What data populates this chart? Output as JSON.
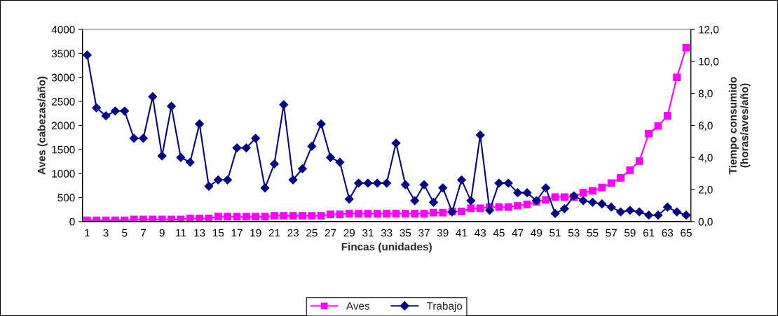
{
  "chart_data": {
    "type": "line",
    "xlabel": "Fincas (unidades)",
    "ylabel": "Aves (cabezas/año)",
    "y2label": "Tiempo consumido\n(horas/aves/año)",
    "categories": [
      "1",
      null,
      "3",
      null,
      "5",
      null,
      "7",
      null,
      "9",
      null,
      "11",
      null,
      "13",
      null,
      "15",
      null,
      "17",
      null,
      "19",
      null,
      "21",
      null,
      "23",
      null,
      "25",
      null,
      "27",
      null,
      "29",
      null,
      "31",
      null,
      "33",
      null,
      "35",
      null,
      "37",
      null,
      "39",
      null,
      "41",
      null,
      "43",
      null,
      "45",
      null,
      "47",
      null,
      "49",
      null,
      "51",
      null,
      "53",
      null,
      "55",
      null,
      "57",
      null,
      "59",
      null,
      "61",
      null,
      "63",
      null,
      "65"
    ],
    "series": [
      {
        "name": "Aves",
        "color": "#ff00ff",
        "marker": "square",
        "values": [
          25,
          25,
          25,
          25,
          25,
          45,
          45,
          45,
          45,
          45,
          45,
          65,
          65,
          65,
          100,
          100,
          100,
          100,
          100,
          100,
          120,
          120,
          120,
          120,
          120,
          120,
          150,
          150,
          165,
          165,
          165,
          165,
          165,
          165,
          165,
          165,
          165,
          185,
          185,
          210,
          210,
          275,
          275,
          300,
          300,
          300,
          330,
          355,
          410,
          450,
          510,
          510,
          510,
          600,
          640,
          710,
          800,
          910,
          1070,
          1260,
          1830,
          1990,
          2200,
          3000,
          3620
        ]
      },
      {
        "name": "Trabajo",
        "color": "#000080",
        "marker": "diamond",
        "axis": "y2",
        "values": [
          10.4,
          7.1,
          6.6,
          6.9,
          6.9,
          5.2,
          5.2,
          7.8,
          4.1,
          7.2,
          4.0,
          3.7,
          6.1,
          2.2,
          2.6,
          2.6,
          4.6,
          4.6,
          5.2,
          2.1,
          3.6,
          7.3,
          2.6,
          3.3,
          4.7,
          6.1,
          4.0,
          3.7,
          1.4,
          2.4,
          2.4,
          2.4,
          2.4,
          4.9,
          2.3,
          1.3,
          2.3,
          1.2,
          2.1,
          0.6,
          2.6,
          1.3,
          5.4,
          0.7,
          2.4,
          2.4,
          1.8,
          1.8,
          1.3,
          2.1,
          0.5,
          0.8,
          1.6,
          1.3,
          1.2,
          1.1,
          0.9,
          0.6,
          0.7,
          0.6,
          0.4,
          0.4,
          0.9,
          0.6,
          0.4
        ]
      }
    ],
    "ylim": [
      0,
      4000
    ],
    "yticks": [
      0,
      500,
      1000,
      1500,
      2000,
      2500,
      3000,
      3500,
      4000
    ],
    "y2lim": [
      0,
      12
    ],
    "y2ticks": [
      {
        "value": 0,
        "label": "0,0"
      },
      {
        "value": 2,
        "label": "2,0"
      },
      {
        "value": 4,
        "label": "4,0"
      },
      {
        "value": 6,
        "label": "6,0"
      },
      {
        "value": 8,
        "label": "8,0"
      },
      {
        "value": 10,
        "label": "10,0"
      },
      {
        "value": 12,
        "label": "12,0"
      }
    ],
    "grid": false,
    "legend": "bottom",
    "line_style": "solid"
  }
}
